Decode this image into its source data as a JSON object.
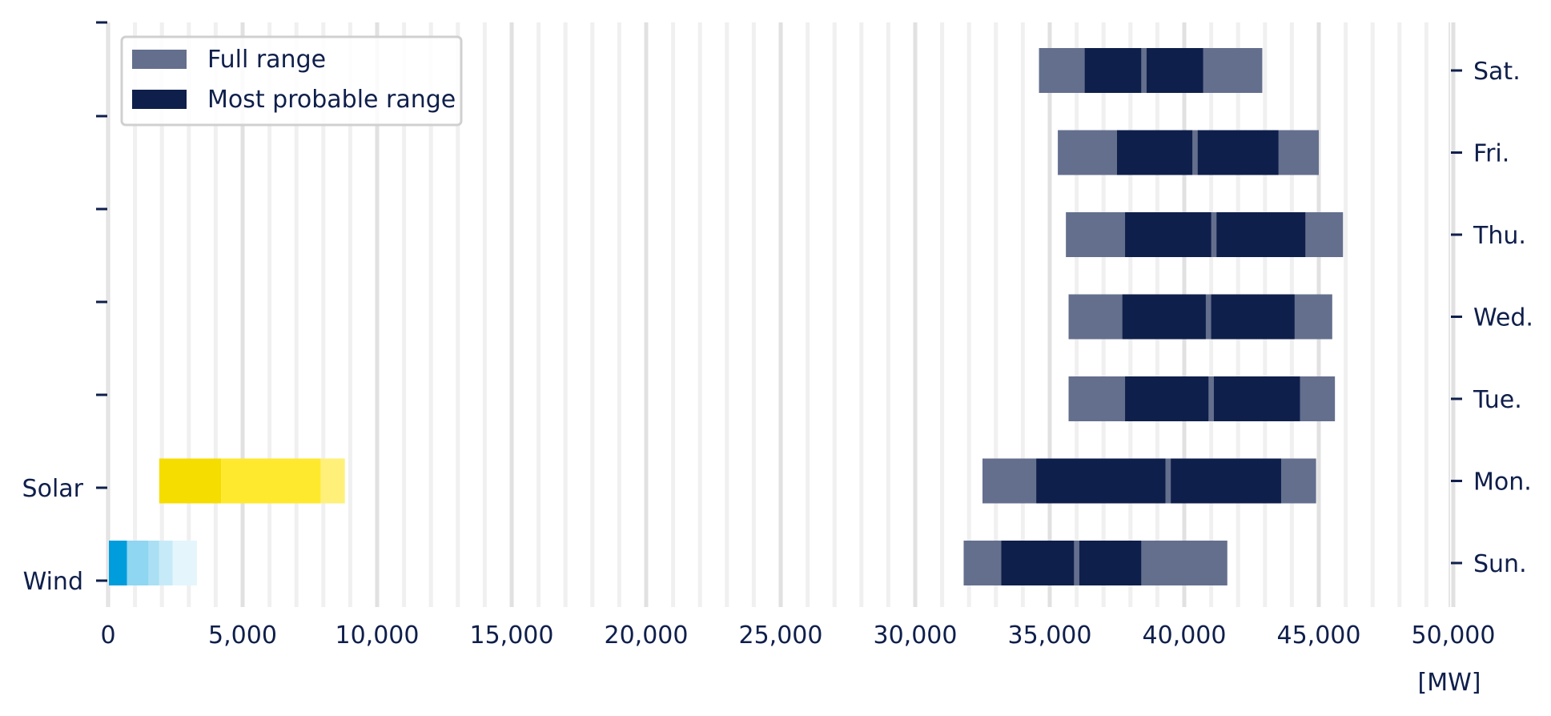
{
  "chart_data": {
    "type": "bar",
    "orientation": "horizontal",
    "unit": "[MW]",
    "xlim": [
      0,
      50000
    ],
    "x_ticks": [
      0,
      5000,
      10000,
      15000,
      20000,
      25000,
      30000,
      35000,
      40000,
      45000,
      50000
    ],
    "x_tick_labels": [
      "0",
      "5,000",
      "10,000",
      "15,000",
      "20,000",
      "25,000",
      "30,000",
      "35,000",
      "40,000",
      "45,000",
      "50,000"
    ],
    "grid": "vertical",
    "legend": {
      "placement": "top-left",
      "entries": [
        {
          "label": "Full range",
          "color": "#646f8e"
        },
        {
          "label": "Most probable range",
          "color": "#0f1f4b"
        }
      ]
    },
    "left_axis_labels": [
      "Solar",
      "Wind"
    ],
    "right_axis_labels": [
      "Sat.",
      "Fri.",
      "Thu.",
      "Wed.",
      "Tue.",
      "Mon.",
      "Sun."
    ],
    "demand_ranges": [
      {
        "day": "Sat.",
        "full": [
          34600,
          42900
        ],
        "probable_1": [
          36300,
          38400
        ],
        "probable_2": [
          38600,
          40700
        ]
      },
      {
        "day": "Fri.",
        "full": [
          35300,
          45000
        ],
        "probable_1": [
          37500,
          40300
        ],
        "probable_2": [
          40500,
          43500
        ]
      },
      {
        "day": "Thu.",
        "full": [
          35600,
          45900
        ],
        "probable_1": [
          37800,
          41000
        ],
        "probable_2": [
          41200,
          44500
        ]
      },
      {
        "day": "Wed.",
        "full": [
          35700,
          45500
        ],
        "probable_1": [
          37700,
          40800
        ],
        "probable_2": [
          41000,
          44100
        ]
      },
      {
        "day": "Tue.",
        "full": [
          35700,
          45600
        ],
        "probable_1": [
          37800,
          40900
        ],
        "probable_2": [
          41100,
          44300
        ]
      },
      {
        "day": "Mon.",
        "full": [
          32500,
          44900
        ],
        "probable_1": [
          34500,
          39300
        ],
        "probable_2": [
          39500,
          43600
        ]
      },
      {
        "day": "Sun.",
        "full": [
          31800,
          41600
        ],
        "probable_1": [
          33200,
          35900
        ],
        "probable_2": [
          36100,
          38400
        ]
      }
    ],
    "renewables": [
      {
        "name": "Solar",
        "segments": [
          {
            "range": [
              1900,
              4200
            ],
            "color": "#f5dd00"
          },
          {
            "range": [
              4200,
              7900
            ],
            "color": "#ffe92e"
          },
          {
            "range": [
              7900,
              8800
            ],
            "color": "#fff07a"
          }
        ]
      },
      {
        "name": "Wind",
        "segments": [
          {
            "range": [
              0,
              700
            ],
            "color": "#009ddc"
          },
          {
            "range": [
              700,
              1500
            ],
            "color": "#8ed6f2"
          },
          {
            "range": [
              1500,
              1900
            ],
            "color": "#aadff4"
          },
          {
            "range": [
              1900,
              2400
            ],
            "color": "#c7eaf8"
          },
          {
            "range": [
              2400,
              3300
            ],
            "color": "#e4f5fc"
          }
        ]
      }
    ]
  }
}
